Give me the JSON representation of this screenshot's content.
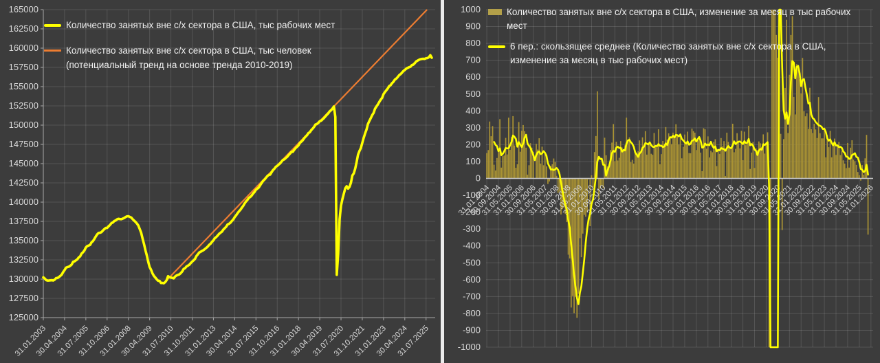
{
  "page": {
    "background": "#3c3c3c",
    "divider_color": "#ebebeb"
  },
  "chart_data": [
    {
      "type": "line",
      "panel": "left",
      "title": "",
      "ylim": [
        125000,
        165000
      ],
      "ytick_step": 2500,
      "y_tick_labels": [
        165000,
        162500,
        160000,
        157500,
        155000,
        152500,
        150000,
        147500,
        145000,
        142500,
        140000,
        137500,
        135000,
        132500,
        130000,
        127500,
        125000
      ],
      "x_tick_labels": [
        "31.01.2003",
        "30.04.2004",
        "31.07.2005",
        "31.10.2006",
        "31.01.2008",
        "30.04.2009",
        "31.07.2010",
        "31.10.2011",
        "31.01.2013",
        "30.04.2014",
        "31.07.2015",
        "31.10.2016",
        "31.01.2018",
        "30.04.2019",
        "31.07.2020",
        "31.10.2021",
        "31.01.2023",
        "30.04.2024",
        "31.07.2025"
      ],
      "x_tick_every_months": 15,
      "x_start_month": "31.01.2003",
      "x_end_month": "30.11.2025",
      "grid": true,
      "legend_position": "top-left-inside",
      "legend": [
        {
          "label": "Количество занятых вне с/х сектора в США, тыс рабочих мест",
          "color": "#ffff00",
          "swatch": "line"
        },
        {
          "label": "Количество занятых вне с/х сектора в США, тыс человек (потенциальный тренд на основе тренда 2010-2019)",
          "color": "#ed7d31",
          "swatch": "line"
        }
      ],
      "series": [
        {
          "name": "Количество занятых вне с/х сектора в США, тыс рабочих мест",
          "color": "#ffff00",
          "levels_2003": [
            130230,
            130080,
            129870,
            129810,
            129820,
            129840,
            129860,
            129820,
            129930,
            130130,
            130150,
            130270
          ],
          "levels_from_2004": "кумулятивная сумма monthly_changes правого графика от уровня 12.2003"
        },
        {
          "name": "потенциальный тренд на основе тренда 2010-2019",
          "color": "#ed7d31",
          "trend": {
            "start_month": "28.02.2010",
            "start_value": 129460,
            "slope_per_month": 191.4,
            "clip_at": 165000
          }
        }
      ]
    },
    {
      "type": "bar",
      "panel": "right",
      "title": "",
      "ylim": [
        -1000,
        1000
      ],
      "ytick_step": 100,
      "y_tick_labels": [
        1000,
        900,
        800,
        700,
        600,
        500,
        400,
        300,
        200,
        100,
        0,
        -100,
        -200,
        -300,
        -400,
        -500,
        -600,
        -700,
        -800,
        -900,
        -1000
      ],
      "x_tick_labels": [
        "31.01.2004",
        "30.09.2004",
        "31.05.2005",
        "31.01.2006",
        "30.09.2006",
        "31.05.2007",
        "31.01.2008",
        "30.09.2008",
        "31.05.2009",
        "31.01.2010",
        "30.09.2010",
        "31.05.2011",
        "31.01.2012",
        "30.09.2012",
        "31.05.2013",
        "31.01.2014",
        "30.09.2014",
        "31.05.2015",
        "31.01.2016",
        "30.09.2016",
        "31.05.2017",
        "31.01.2018",
        "30.09.2018",
        "31.05.2019",
        "31.01.2020",
        "30.09.2020",
        "31.05.2021",
        "31.01.2022",
        "30.09.2022",
        "31.05.2023",
        "31.01.2024",
        "30.09.2024",
        "31.05.2025",
        "31.01.2026"
      ],
      "x_tick_every_months": 8,
      "x_start_month": "31.01.2004",
      "grid": true,
      "values_clipped_to_scale": true,
      "bar_color": "#ab9434",
      "moving_average": {
        "window": 6,
        "color": "#ffff00",
        "label": "6 пер.: скользящее среднее"
      },
      "legend_position": "top-left-inside",
      "legend": [
        {
          "label": "Количество занятых вне с/х сектора в США, изменение за месяц в тыс рабочих мест",
          "color": "#b3a049",
          "swatch": "bar"
        },
        {
          "label": "6 пер.: скользящее среднее (Количество занятых вне с/х сектора в США, изменение за месяц в тыс рабочих мест)",
          "color": "#ffff00",
          "swatch": "line"
        }
      ],
      "monthly_changes": [
        150,
        168,
        337,
        250,
        310,
        81,
        47,
        121,
        160,
        351,
        64,
        132,
        136,
        240,
        142,
        360,
        169,
        246,
        369,
        195,
        63,
        84,
        334,
        158,
        282,
        316,
        280,
        182,
        22,
        78,
        209,
        182,
        158,
        2,
        205,
        171,
        238,
        88,
        188,
        78,
        144,
        71,
        -33,
        -18,
        74,
        84,
        118,
        97,
        15,
        -86,
        -78,
        -214,
        -182,
        -172,
        -210,
        -259,
        -452,
        -474,
        -765,
        -697,
        -798,
        -701,
        -826,
        -684,
        -354,
        -467,
        -327,
        -216,
        -227,
        -198,
        -6,
        -283,
        18,
        -50,
        156,
        251,
        516,
        -122,
        -61,
        -42,
        -57,
        241,
        137,
        71,
        70,
        168,
        212,
        322,
        102,
        217,
        106,
        122,
        221,
        183,
        164,
        196,
        360,
        226,
        243,
        96,
        110,
        88,
        160,
        150,
        161,
        225,
        149,
        243,
        197,
        280,
        141,
        199,
        218,
        146,
        140,
        269,
        185,
        189,
        291,
        84,
        144,
        222,
        203,
        304,
        229,
        267,
        243,
        203,
        271,
        243,
        321,
        256,
        201,
        266,
        119,
        187,
        260,
        206,
        277,
        150,
        149,
        295,
        280,
        271,
        168,
        233,
        225,
        153,
        43,
        297,
        291,
        176,
        249,
        124,
        164,
        155,
        216,
        232,
        73,
        175,
        145,
        239,
        190,
        221,
        14,
        271,
        216,
        175,
        176,
        324,
        155,
        175,
        268,
        212,
        178,
        282,
        108,
        277,
        197,
        227,
        312,
        56,
        153,
        216,
        62,
        178,
        166,
        219,
        208,
        185,
        261,
        147,
        214,
        273,
        -1373,
        -20493,
        2725,
        4505,
        1761,
        850,
        715,
        680,
        264,
        -306,
        233,
        536,
        940,
        269,
        614,
        850,
        962,
        483,
        379,
        677,
        647,
        588,
        504,
        714,
        398,
        368,
        386,
        293,
        537,
        292,
        269,
        324,
        290,
        239,
        482,
        268,
        237,
        237,
        301,
        125,
        256,
        185,
        282,
        125,
        202,
        236,
        139,
        192,
        216,
        138,
        163,
        107,
        88,
        61,
        210,
        64,
        182,
        226,
        111,
        102,
        80,
        38,
        19,
        -13,
        79,
        22,
        119,
        258,
        -333
      ]
    }
  ]
}
